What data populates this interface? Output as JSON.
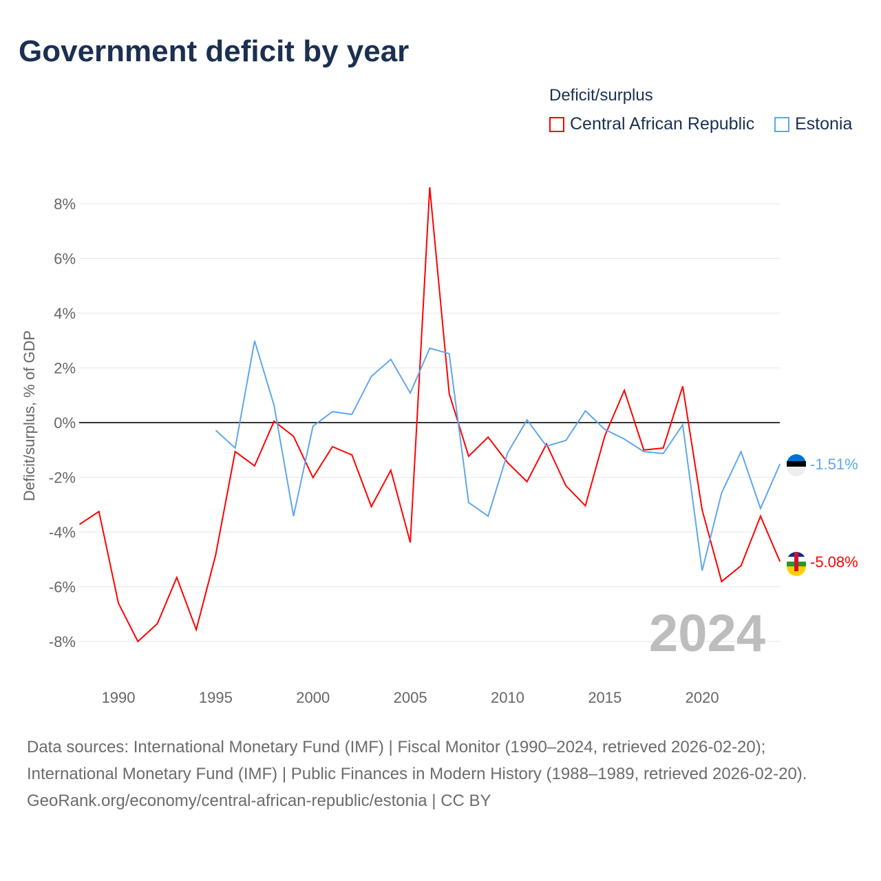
{
  "title": "Government deficit by year",
  "chart_data": {
    "type": "line",
    "title": "Government deficit by year",
    "ylabel": "Deficit/surplus, % of GDP",
    "xlabel": "",
    "ylim": [
      -9,
      9
    ],
    "xlim": [
      1988,
      2024
    ],
    "yticks": [
      -8,
      -6,
      -4,
      -2,
      0,
      2,
      4,
      6,
      8
    ],
    "ytick_labels": [
      "-8%",
      "-6%",
      "-4%",
      "-2%",
      "0%",
      "2%",
      "4%",
      "6%",
      "8%"
    ],
    "xticks": [
      1990,
      1995,
      2000,
      2005,
      2010,
      2015,
      2020
    ],
    "xtick_labels": [
      "1990",
      "1995",
      "2000",
      "2005",
      "2010",
      "2015",
      "2020"
    ],
    "legend_title": "Deficit/surplus",
    "legend_position": "top-right",
    "year_label": "2024",
    "series": [
      {
        "name": "Central African Republic",
        "color": "#ff0000",
        "end_label": "-5.08%",
        "start": 1988,
        "values": [
          -3.72,
          -3.25,
          -6.6,
          -8.0,
          -7.35,
          -5.66,
          -7.57,
          -4.83,
          -1.06,
          -1.58,
          0.05,
          -0.5,
          -2.01,
          -0.88,
          -1.18,
          -3.07,
          -1.74,
          -4.38,
          8.6,
          1.06,
          -1.23,
          -0.53,
          -1.46,
          -2.16,
          -0.78,
          -2.31,
          -3.04,
          -0.48,
          1.18,
          -1.0,
          -0.93,
          1.33,
          -3.19,
          -5.81,
          -5.23,
          -3.42,
          -5.08
        ]
      },
      {
        "name": "Estonia",
        "color": "#5ea6ee",
        "end_label": "-1.51%",
        "start": 1995,
        "values": [
          -0.28,
          -0.93,
          2.99,
          0.63,
          -3.42,
          -0.13,
          0.4,
          0.3,
          1.69,
          2.31,
          1.08,
          2.72,
          2.52,
          -2.92,
          -3.42,
          -1.11,
          0.1,
          -0.86,
          -0.65,
          0.43,
          -0.25,
          -0.6,
          -1.06,
          -1.13,
          -0.08,
          -5.41,
          -2.57,
          -1.06,
          -3.14,
          -1.51
        ]
      }
    ]
  },
  "footer": {
    "sources": "Data sources: International Monetary Fund (IMF) | Fiscal Monitor (1990–2024, retrieved 2026-02-20); International Monetary Fund (IMF) | Public Finances in Modern History (1988–1989, retrieved 2026-02-20).",
    "link": "GeoRank.org/economy/central-african-republic/estonia | CC BY"
  }
}
